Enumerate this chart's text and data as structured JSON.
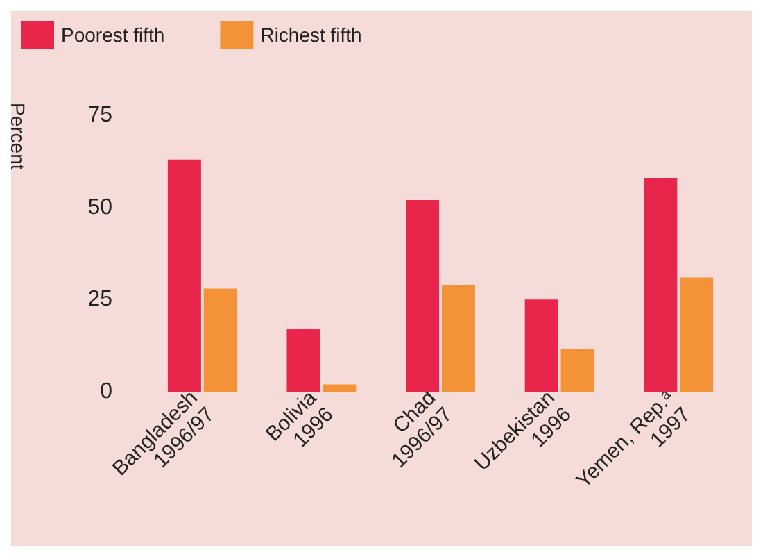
{
  "chart_data": {
    "type": "bar",
    "ylabel": "Percent",
    "categories": [
      "Bangladesh\n1996/97",
      "Bolivia\n1996",
      "Chad\n1996/97",
      "Uzbekistan\n1996",
      "Yemen, Rep.ᵃ\n1997"
    ],
    "series": [
      {
        "name": "Poorest fifth",
        "color": "#e8264c",
        "values": [
          63,
          17,
          52,
          25,
          58
        ]
      },
      {
        "name": "Richest fifth",
        "color": "#f39237",
        "values": [
          28,
          2,
          29,
          11.5,
          31
        ]
      }
    ],
    "ylim": [
      0,
      75
    ],
    "yticks": [
      0,
      25,
      50,
      75
    ],
    "grid": false,
    "legend": "top left"
  }
}
